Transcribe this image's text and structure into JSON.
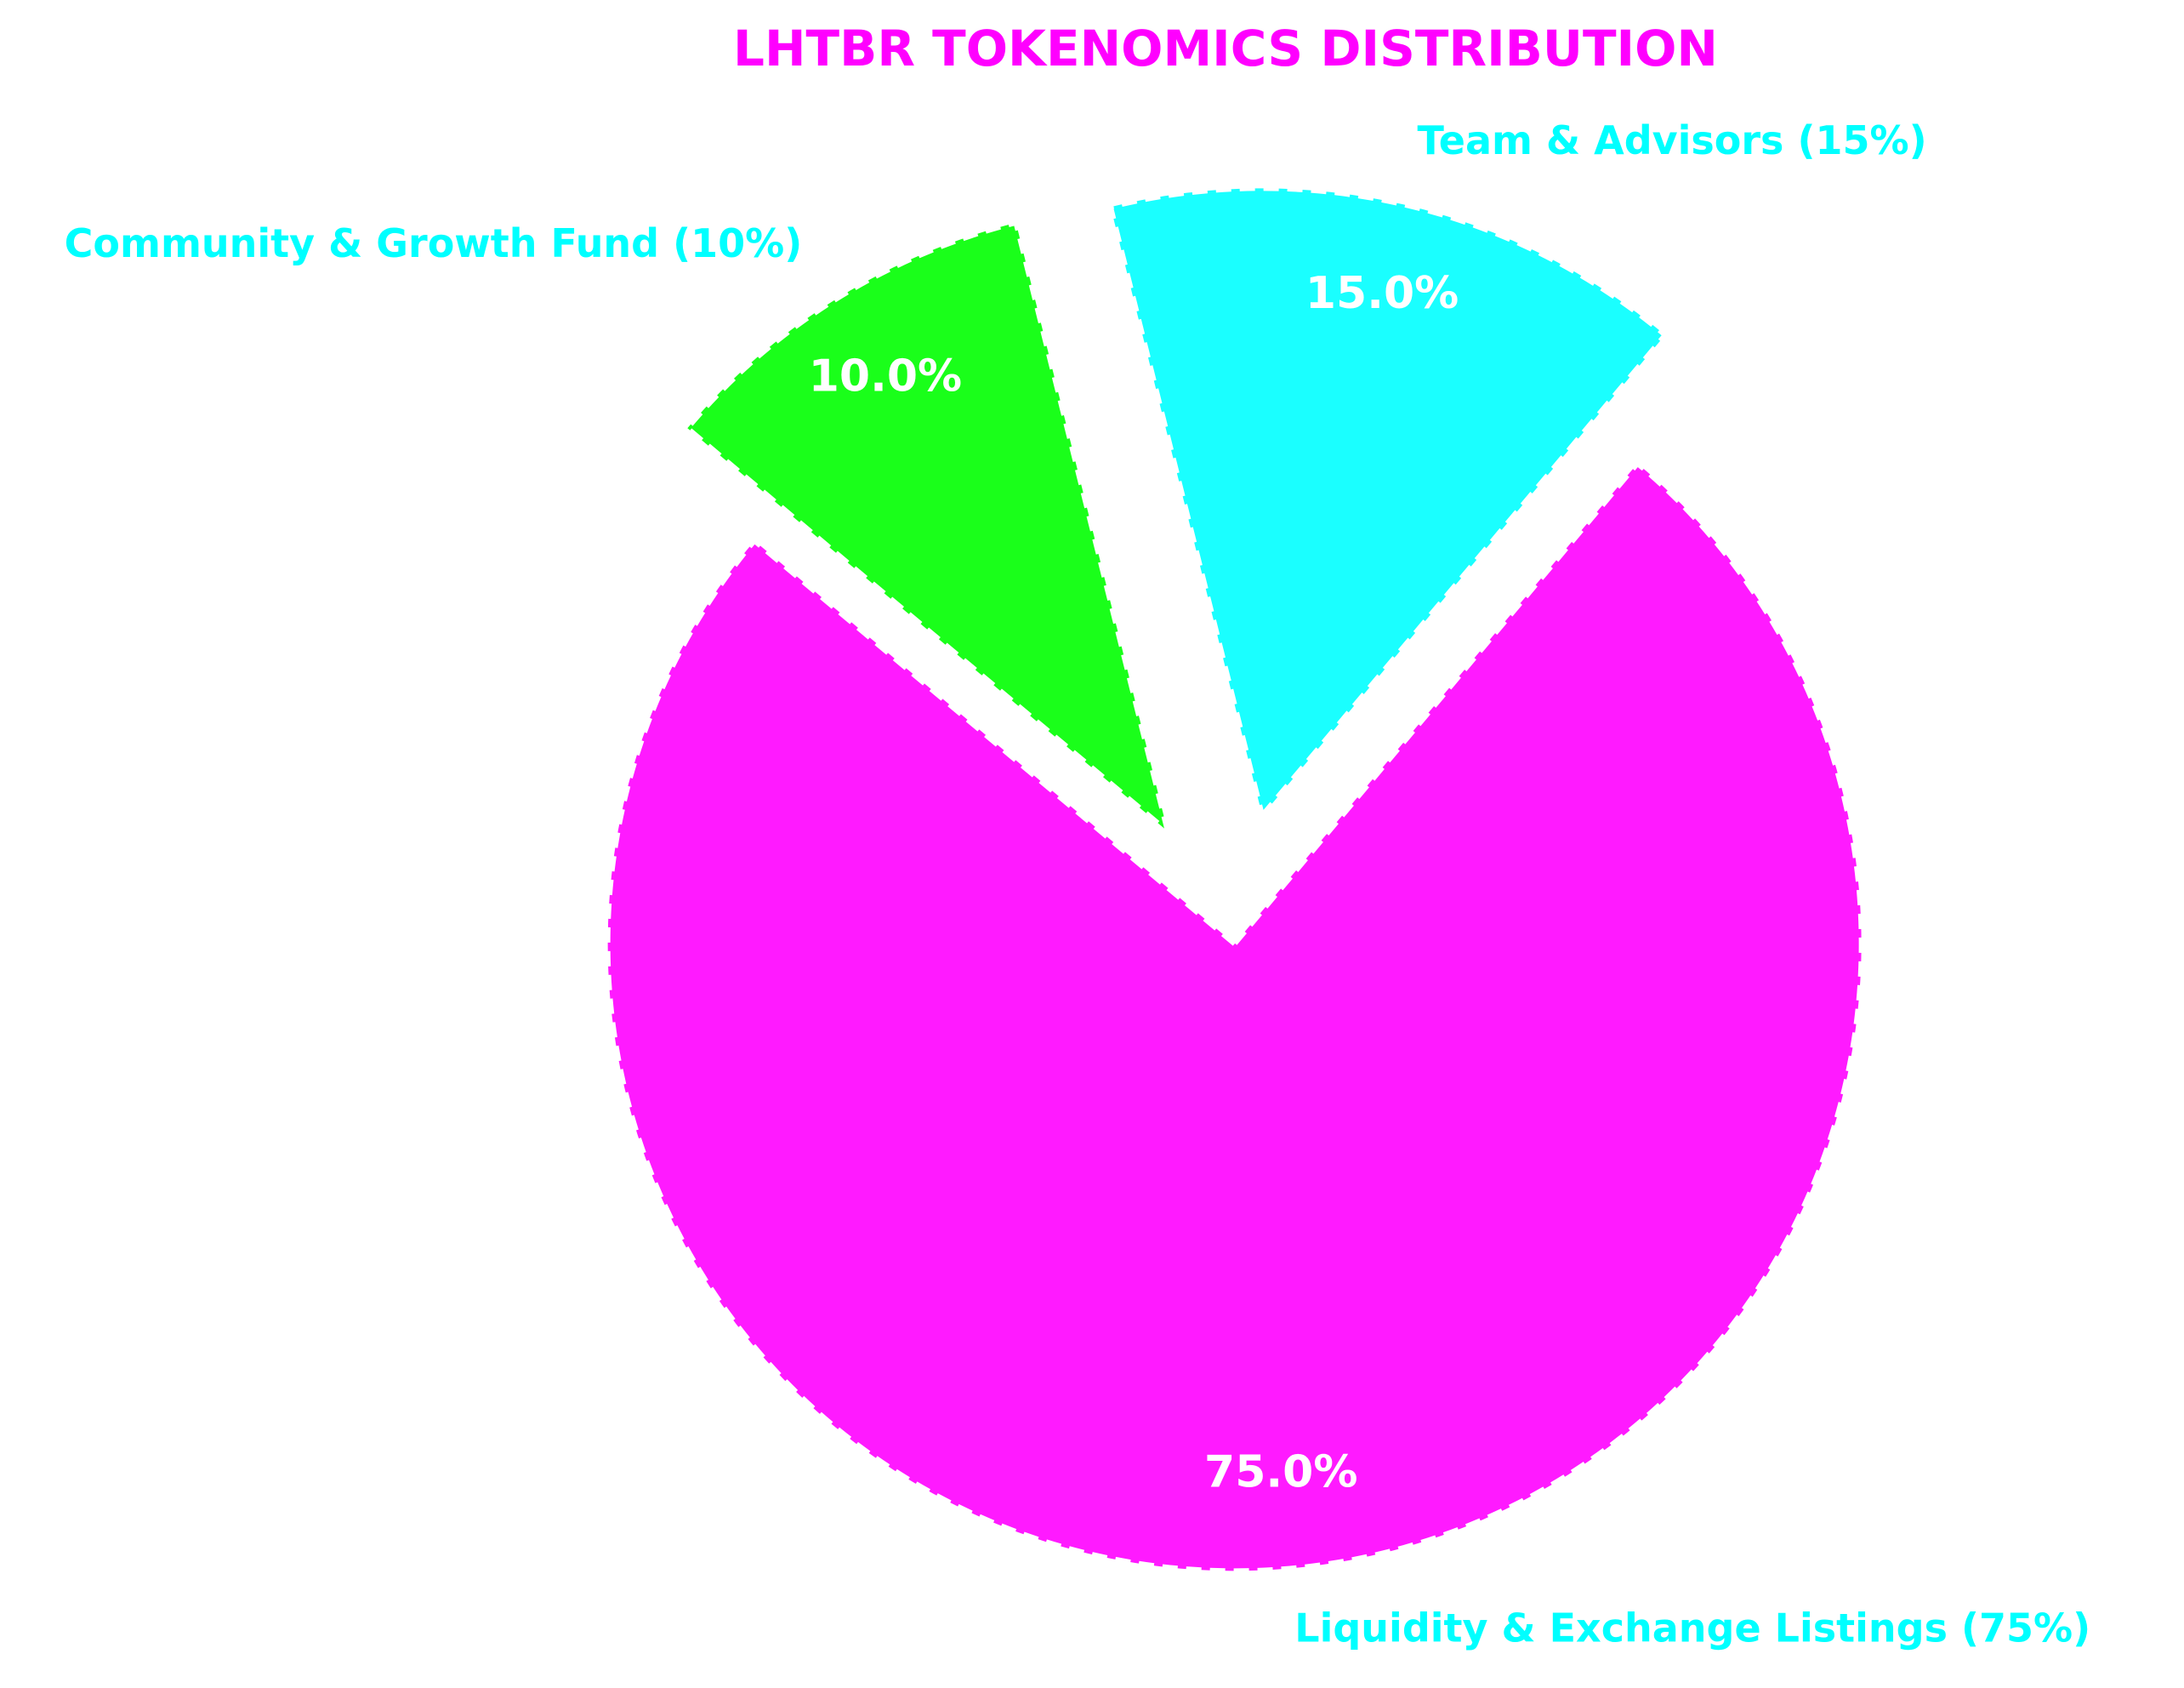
{
  "chart_data": {
    "type": "pie",
    "title": "LHTBR TOKENOMICS DISTRIBUTION",
    "title_color": "#ff00ff",
    "label_color": "#00ffff",
    "categories": [
      "Liquidity & Exchange Listings (75%)",
      "Team & Advisors (15%)",
      "Community & Growth Fund (10%)"
    ],
    "values": [
      75,
      15,
      10
    ],
    "value_labels": [
      "75.0%",
      "15.0%",
      "10.0%"
    ],
    "colors": [
      "#ff1aff",
      "#1affff",
      "#1aff1a"
    ]
  }
}
